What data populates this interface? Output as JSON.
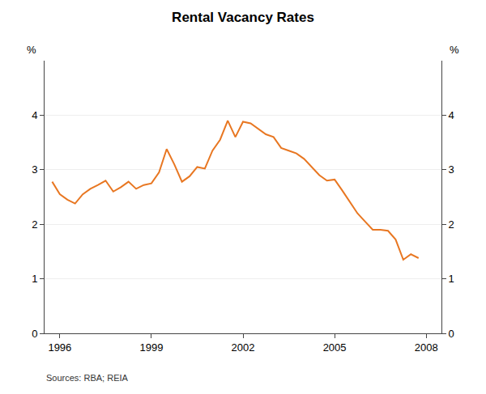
{
  "chart_data": {
    "type": "line",
    "title": "Rental Vacancy Rates",
    "ylabel": "%",
    "y2label": "%",
    "source": "Sources: RBA; REIA",
    "color": "#E87722",
    "grid": true,
    "xlim": [
      1995.5,
      2008.5
    ],
    "xticks": [
      1996,
      1999,
      2002,
      2005,
      2008
    ],
    "ylim": [
      0,
      5
    ],
    "yticks": [
      0,
      1,
      2,
      3,
      4
    ],
    "y2lim": [
      0,
      5
    ],
    "y2ticks": [
      0,
      1,
      2,
      3,
      4
    ],
    "x": [
      1995.75,
      1996.0,
      1996.25,
      1996.5,
      1996.75,
      1997.0,
      1997.25,
      1997.5,
      1997.75,
      1998.0,
      1998.25,
      1998.5,
      1998.75,
      1999.0,
      1999.25,
      1999.5,
      1999.75,
      2000.0,
      2000.25,
      2000.5,
      2000.75,
      2001.0,
      2001.25,
      2001.5,
      2001.75,
      2002.0,
      2002.25,
      2002.5,
      2002.75,
      2003.0,
      2003.25,
      2003.5,
      2003.75,
      2004.0,
      2004.25,
      2004.5,
      2004.75,
      2005.0,
      2005.25,
      2005.5,
      2005.75,
      2006.0,
      2006.25,
      2006.5,
      2006.75,
      2007.0,
      2007.25,
      2007.5,
      2007.75
    ],
    "values": [
      2.78,
      2.55,
      2.45,
      2.38,
      2.55,
      2.65,
      2.72,
      2.8,
      2.6,
      2.68,
      2.78,
      2.65,
      2.72,
      2.75,
      2.95,
      3.38,
      3.1,
      2.78,
      2.88,
      3.05,
      3.02,
      3.35,
      3.55,
      3.9,
      3.6,
      3.88,
      3.85,
      3.75,
      3.65,
      3.6,
      3.4,
      3.35,
      3.3,
      3.2,
      3.05,
      2.9,
      2.8,
      2.82,
      2.62,
      2.4,
      2.2,
      2.05,
      1.9,
      1.9,
      1.88,
      1.72,
      1.35,
      1.45,
      1.38
    ]
  }
}
